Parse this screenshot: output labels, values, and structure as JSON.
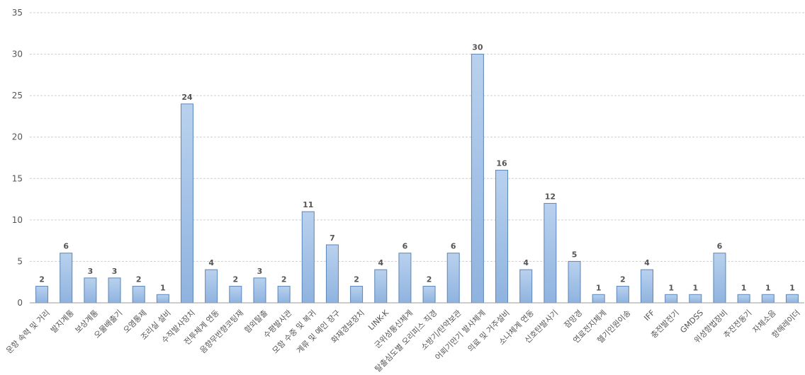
{
  "chart_data": {
    "type": "bar",
    "title": "",
    "xlabel": "",
    "ylabel": "",
    "ylim": [
      0,
      35
    ],
    "yticks": [
      0,
      5,
      10,
      15,
      20,
      25,
      30,
      35
    ],
    "grid": true,
    "legend": "none",
    "data_labels": true,
    "bar_color": "#9dbee4",
    "categories": [
      "운항 속력 및 거리",
      "발지계통",
      "보상계통",
      "오물배출기",
      "오염통제",
      "조리실 설비",
      "수직발사장치",
      "전투체계 연동",
      "음향무반향코팅재",
      "함외탈출",
      "수평발사관",
      "모함 수중 및 복귀",
      "계류 및 예인 장구",
      "화재경보장치",
      "LINK-K",
      "군위성통신체계",
      "탈출심도별 오리피스 직경",
      "소방기/탄약보관",
      "어뢰기만기 발사체계",
      "의료 및 거주설비",
      "소나체계 연동",
      "신호탄발사기",
      "잠망경",
      "연료전지체계",
      "헬기인원이송",
      "IFF",
      "충전발전기",
      "GMDSS",
      "위성항법장비",
      "추진전동기",
      "자체소음",
      "항해레이더"
    ],
    "values": [
      2,
      6,
      3,
      3,
      2,
      1,
      24,
      4,
      2,
      3,
      2,
      11,
      7,
      2,
      4,
      6,
      2,
      6,
      30,
      16,
      4,
      12,
      5,
      1,
      2,
      4,
      1,
      1,
      6,
      1,
      1,
      1
    ]
  }
}
